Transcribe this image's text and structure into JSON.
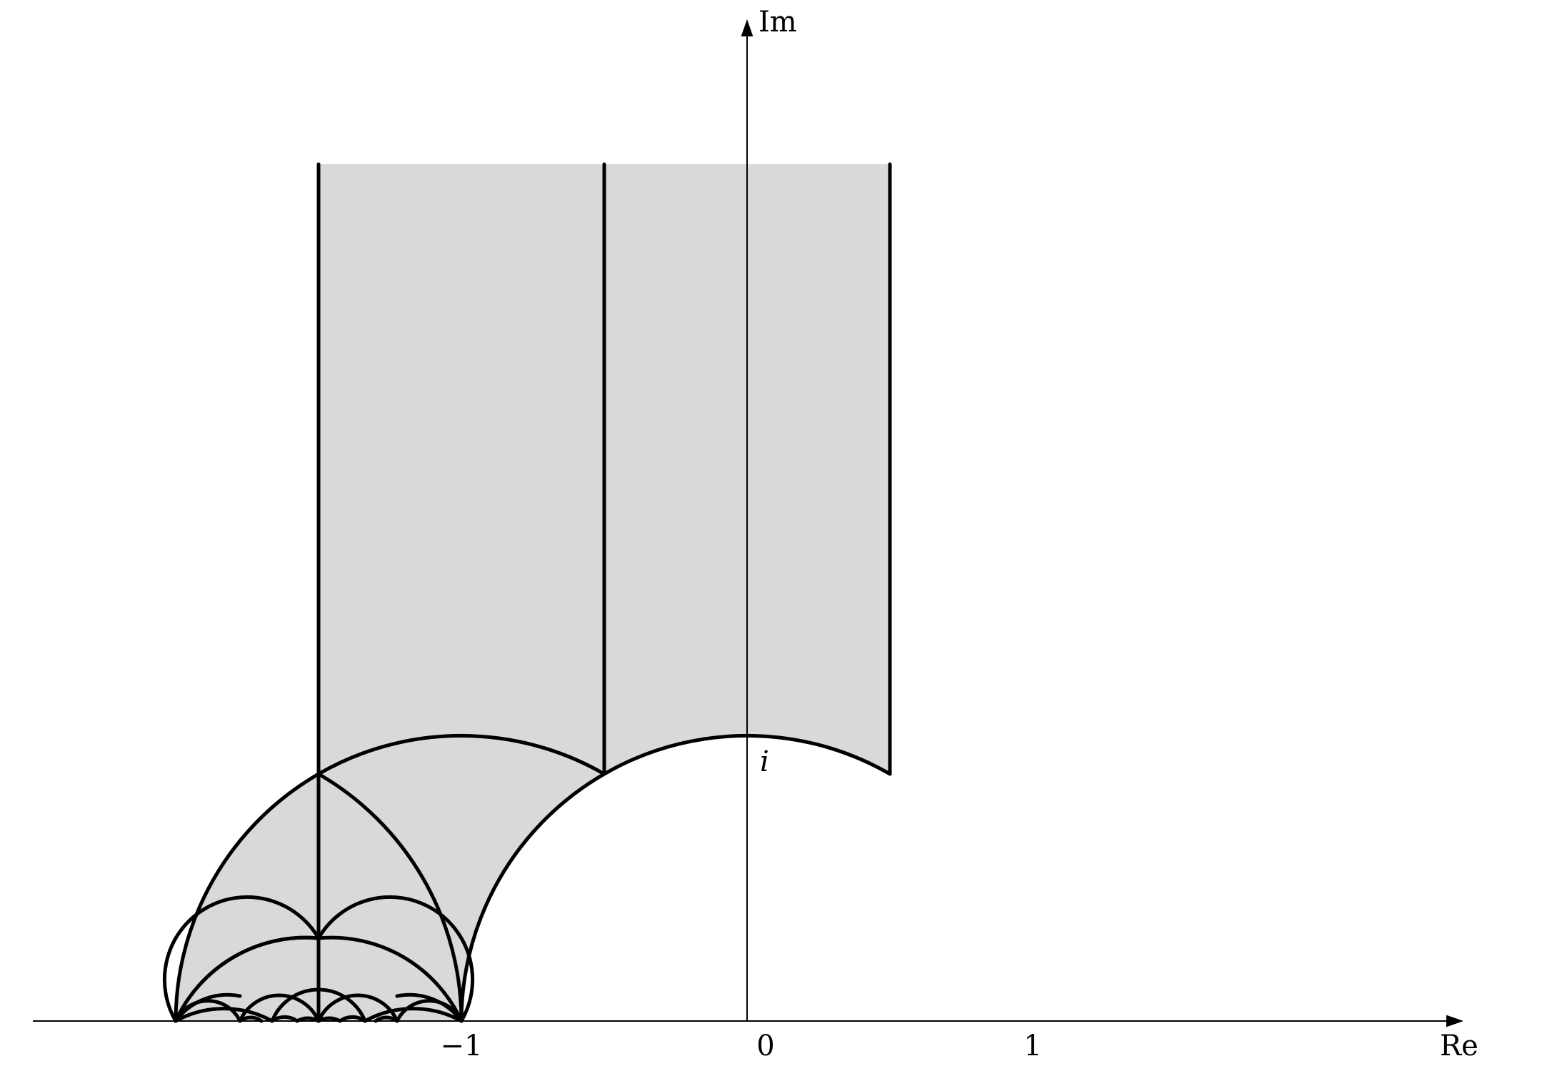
{
  "diagram": {
    "axes": {
      "x_label": "Re",
      "y_label": "Im"
    },
    "ticks": {
      "neg_one": "−1",
      "zero": "0",
      "one": "1"
    },
    "point_label": "i",
    "colors": {
      "region_fill": "#d9d9d9",
      "stroke": "#000000",
      "background": "#ffffff"
    }
  }
}
